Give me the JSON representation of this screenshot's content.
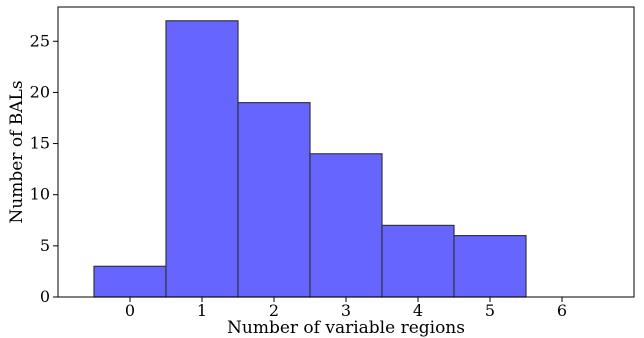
{
  "chart_data": {
    "type": "bar",
    "categories": [
      "0",
      "1",
      "2",
      "3",
      "4",
      "5",
      "6"
    ],
    "values": [
      3,
      27,
      19,
      14,
      7,
      6,
      0
    ],
    "title": "",
    "xlabel": "Number of variable regions",
    "ylabel": "Number of BALs",
    "xlim": [
      -1,
      7
    ],
    "ylim": [
      0,
      28.35
    ],
    "xticks": [
      0,
      1,
      2,
      3,
      4,
      5,
      6
    ],
    "yticks": [
      0,
      5,
      10,
      15,
      20,
      25
    ],
    "grid": false,
    "legend": "none",
    "colors": {
      "bar_fill": "#6666ff",
      "bar_edge": "#333344",
      "axes": "#000000"
    }
  }
}
